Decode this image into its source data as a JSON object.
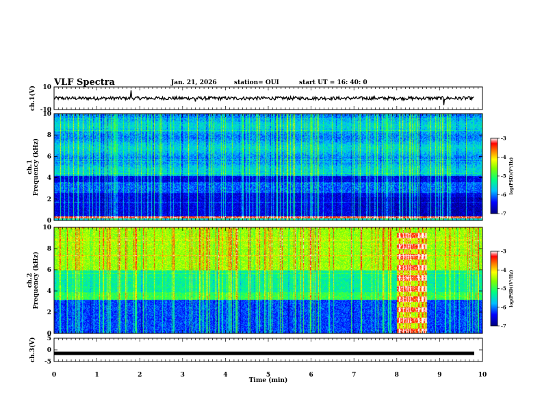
{
  "header": {
    "title": "VLF Spectra",
    "date": "Jan. 21, 2026",
    "station": "station= OUI",
    "start": "start  UT =   16: 40: 0"
  },
  "chart_data": {
    "type": "heatmap",
    "x_axis": {
      "label": "Time  (min)",
      "range": [
        0,
        10
      ],
      "ticks": [
        "0",
        "1",
        "2",
        "3",
        "4",
        "5",
        "6",
        "7",
        "8",
        "9",
        "10"
      ]
    },
    "panels": [
      {
        "name": "ch1-waveform",
        "kind": "line",
        "ylabel": "ch.1(V)",
        "ylim": [
          -10,
          10
        ],
        "yticks": [
          "10",
          "-10"
        ],
        "baseline": 0,
        "spikes": [
          {
            "t": 1.8,
            "v": 7
          },
          {
            "t": 3.3,
            "v": -3
          },
          {
            "t": 9.1,
            "v": -6
          }
        ]
      },
      {
        "name": "ch1-spectrogram",
        "kind": "heatmap",
        "ylabel": "ch.1\nFrequency (kHz)",
        "ylim": [
          0,
          10
        ],
        "yticks": [
          "0",
          "2",
          "4",
          "6",
          "8",
          "10"
        ],
        "band_notes": "dark blue below 4 kHz with bright red line at 0.3 kHz; green/cyan above 4.5 kHz",
        "colorbar": {
          "title": "log(PSD)(V²/Hz)",
          "ticks": [
            "-3",
            "-4",
            "-5",
            "-6",
            "-7"
          ],
          "range": [
            -7,
            -3
          ]
        }
      },
      {
        "name": "ch2-spectrogram",
        "kind": "heatmap",
        "ylabel": "ch.2\nFrequency (kHz)",
        "ylim": [
          0,
          10
        ],
        "yticks": [
          "0",
          "2",
          "4",
          "6",
          "8",
          "10"
        ],
        "band_notes": "yellow/green above 6 kHz, cyan/blue below; strong red banded signal between 8.0 and 8.7 min",
        "colorbar": {
          "title": "log(PSD)(V²/Hz)",
          "ticks": [
            "-3",
            "-4",
            "-5",
            "-6",
            "-7"
          ],
          "range": [
            -7,
            -3
          ]
        }
      },
      {
        "name": "ch3-waveform",
        "kind": "line",
        "ylabel": "ch.3(V)",
        "ylim": [
          -5,
          5
        ],
        "yticks": [
          "5",
          "0",
          "-5"
        ],
        "baseline": -1.5
      }
    ]
  },
  "colors": {
    "colormap": [
      "#00007f",
      "#0000ff",
      "#00bfff",
      "#00ff80",
      "#80ff00",
      "#ffff00",
      "#ff8000",
      "#ff0000",
      "#ffffff"
    ]
  }
}
